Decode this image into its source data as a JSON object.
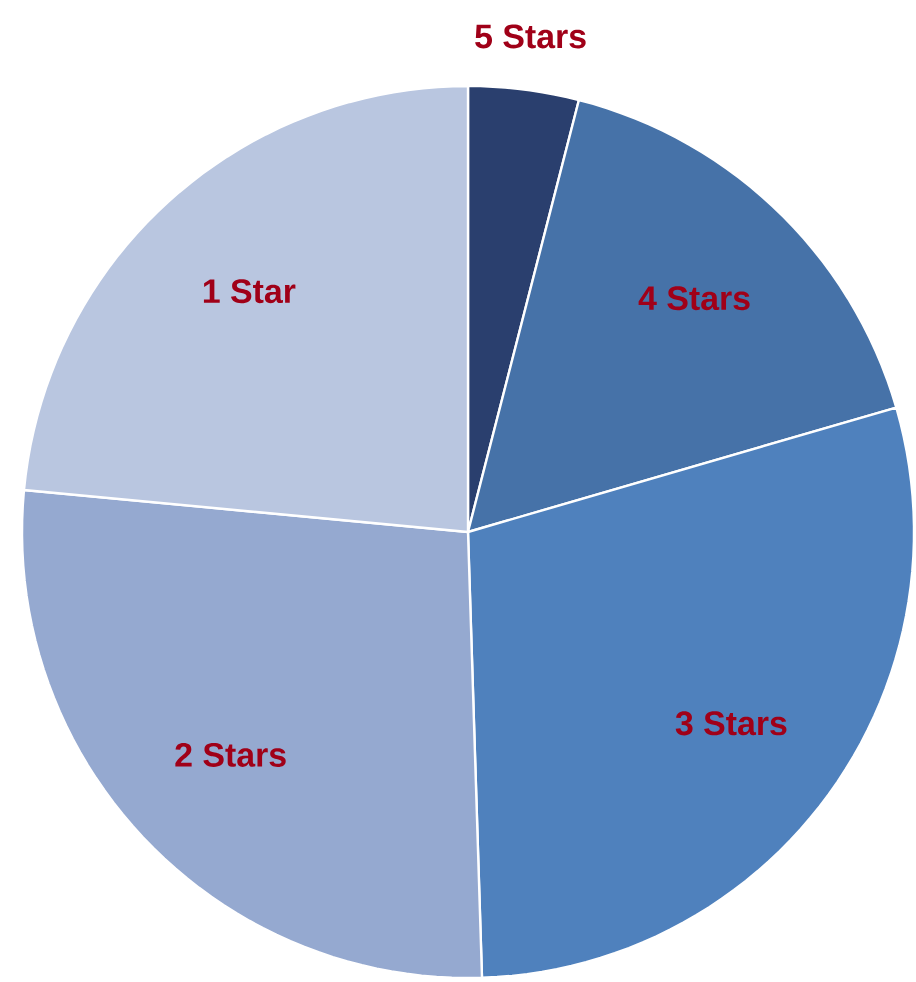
{
  "chart_data": {
    "type": "pie",
    "categories": [
      "5 Stars",
      "4 Stars",
      "3 Stars",
      "2 Stars",
      "1 Star"
    ],
    "values": [
      4,
      16.5,
      29,
      27,
      23.5
    ],
    "colors": [
      "#2a3f6e",
      "#4672a8",
      "#4f81bd",
      "#95a9d0",
      "#b9c6e0"
    ]
  }
}
